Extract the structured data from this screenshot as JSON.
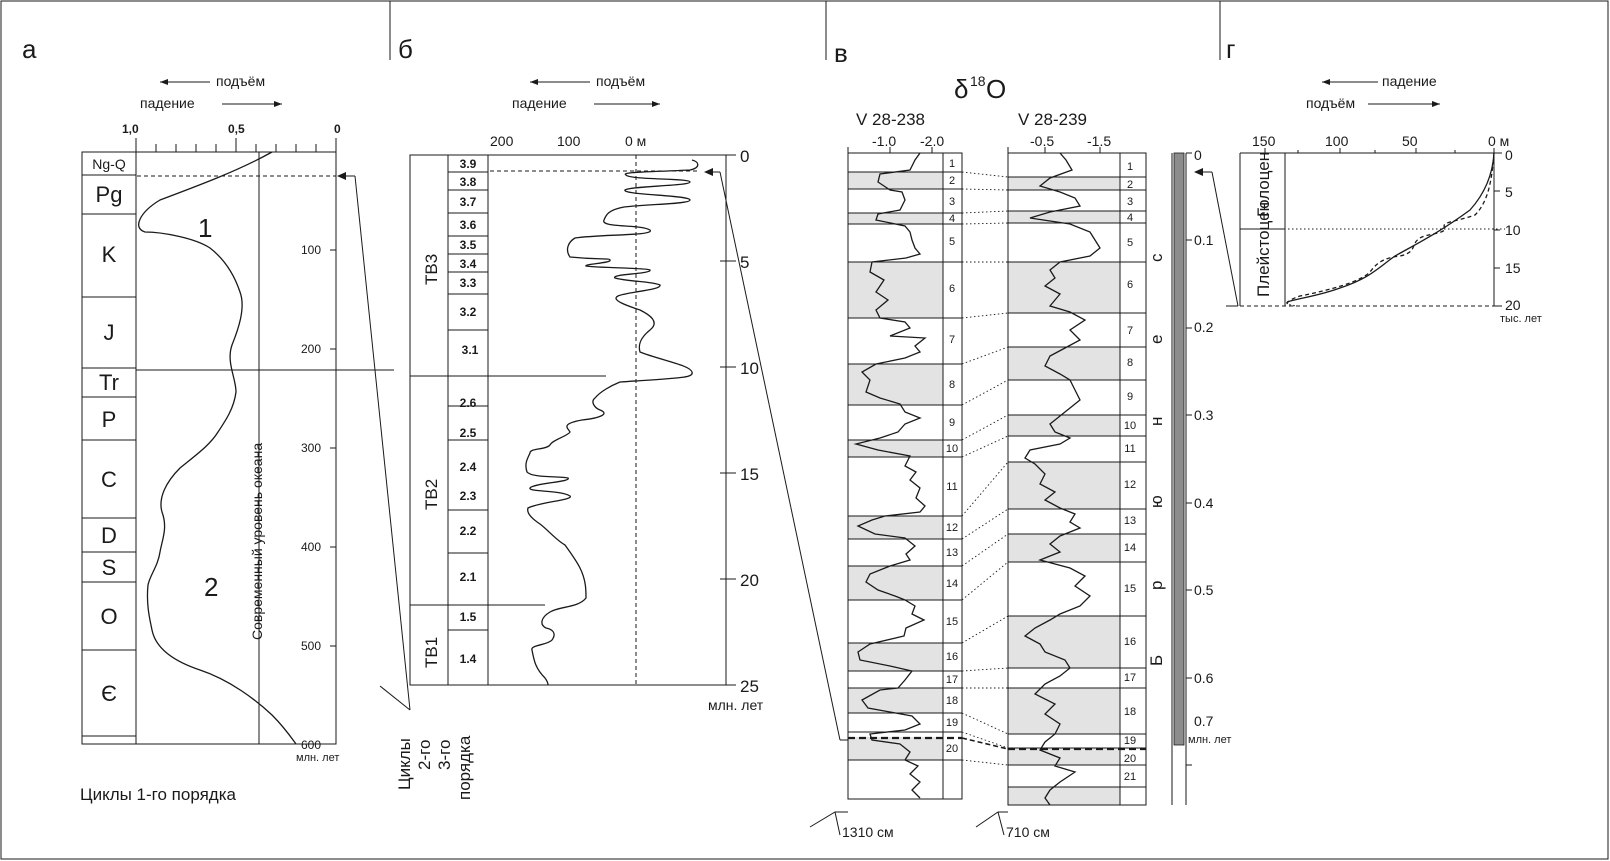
{
  "panels": {
    "a": {
      "letter": "а",
      "arrow_top": "подъём",
      "arrow_bottom": "падение",
      "top_ticks": [
        "1,0",
        "0,5",
        "0"
      ],
      "periods": [
        "Ng-Q",
        "Pg",
        "K",
        "J",
        "Tr",
        "P",
        "C",
        "D",
        "S",
        "O",
        "Є"
      ],
      "age_ticks": [
        "100",
        "200",
        "300",
        "400",
        "500",
        "600"
      ],
      "age_unit": "млн. лет",
      "region_1": "1",
      "region_2": "2",
      "sea_level_label": "Современный уровень океана",
      "caption": "Циклы 1-го порядка"
    },
    "b": {
      "letter": "б",
      "arrow_top": "подъём",
      "arrow_bottom": "падение",
      "top_ticks": [
        "200",
        "100",
        "0 м"
      ],
      "depth_ticks": [
        "0",
        "5",
        "10",
        "15",
        "20",
        "25"
      ],
      "depth_unit": "млн. лет",
      "second_order": [
        "ТВ3",
        "ТВ2",
        "ТВ1"
      ],
      "third_order": [
        "3.9",
        "3.8",
        "3.7",
        "3.6",
        "3.5",
        "3.4",
        "3.3",
        "3.2",
        "3.1",
        "2.6",
        "2.5",
        "2.4",
        "2.3",
        "2.2",
        "2.1",
        "1.5",
        "1.4"
      ],
      "col1_label": "Циклы",
      "col2_label": "2-го",
      "col3_label": "3-го",
      "col4_label": "порядка"
    },
    "v": {
      "letter": "в",
      "title_delta": "δ",
      "title_sup": "18",
      "title_o": "O",
      "core_left": "V 28-238",
      "core_right": "V 28-239",
      "left_ticks": [
        "-1.0",
        "-2.0"
      ],
      "right_ticks": [
        "-0.5",
        "-1.5"
      ],
      "left_stages": [
        "1",
        "2",
        "3",
        "4",
        "5",
        "6",
        "7",
        "8",
        "9",
        "10",
        "11",
        "12",
        "13",
        "14",
        "15",
        "16",
        "17",
        "18",
        "19",
        "20"
      ],
      "right_stages": [
        "1",
        "2",
        "3",
        "4",
        "5",
        "6",
        "7",
        "8",
        "9",
        "10",
        "11",
        "12",
        "13",
        "14",
        "15",
        "16",
        "17",
        "18",
        "19",
        "20",
        "21"
      ],
      "brunhes": [
        "Б",
        "р",
        "ю",
        "н",
        "е",
        "с"
      ],
      "age_ticks": [
        "0",
        "0.1",
        "0.2",
        "0.3",
        "0.4",
        "0.5",
        "0.6",
        "0.7"
      ],
      "age_unit": "млн. лет",
      "depth_left": "1310 см",
      "depth_right": "710 см"
    },
    "g": {
      "letter": "г",
      "arrow_top": "падение",
      "arrow_bottom": "подъём",
      "top_ticks": [
        "150",
        "100",
        "50",
        "0 м"
      ],
      "age_ticks": [
        "0",
        "5",
        "10",
        "15",
        "20"
      ],
      "age_unit": "тыс. лет",
      "holocene": "Голоцен",
      "pleistocene": "Плейстоцен"
    }
  }
}
